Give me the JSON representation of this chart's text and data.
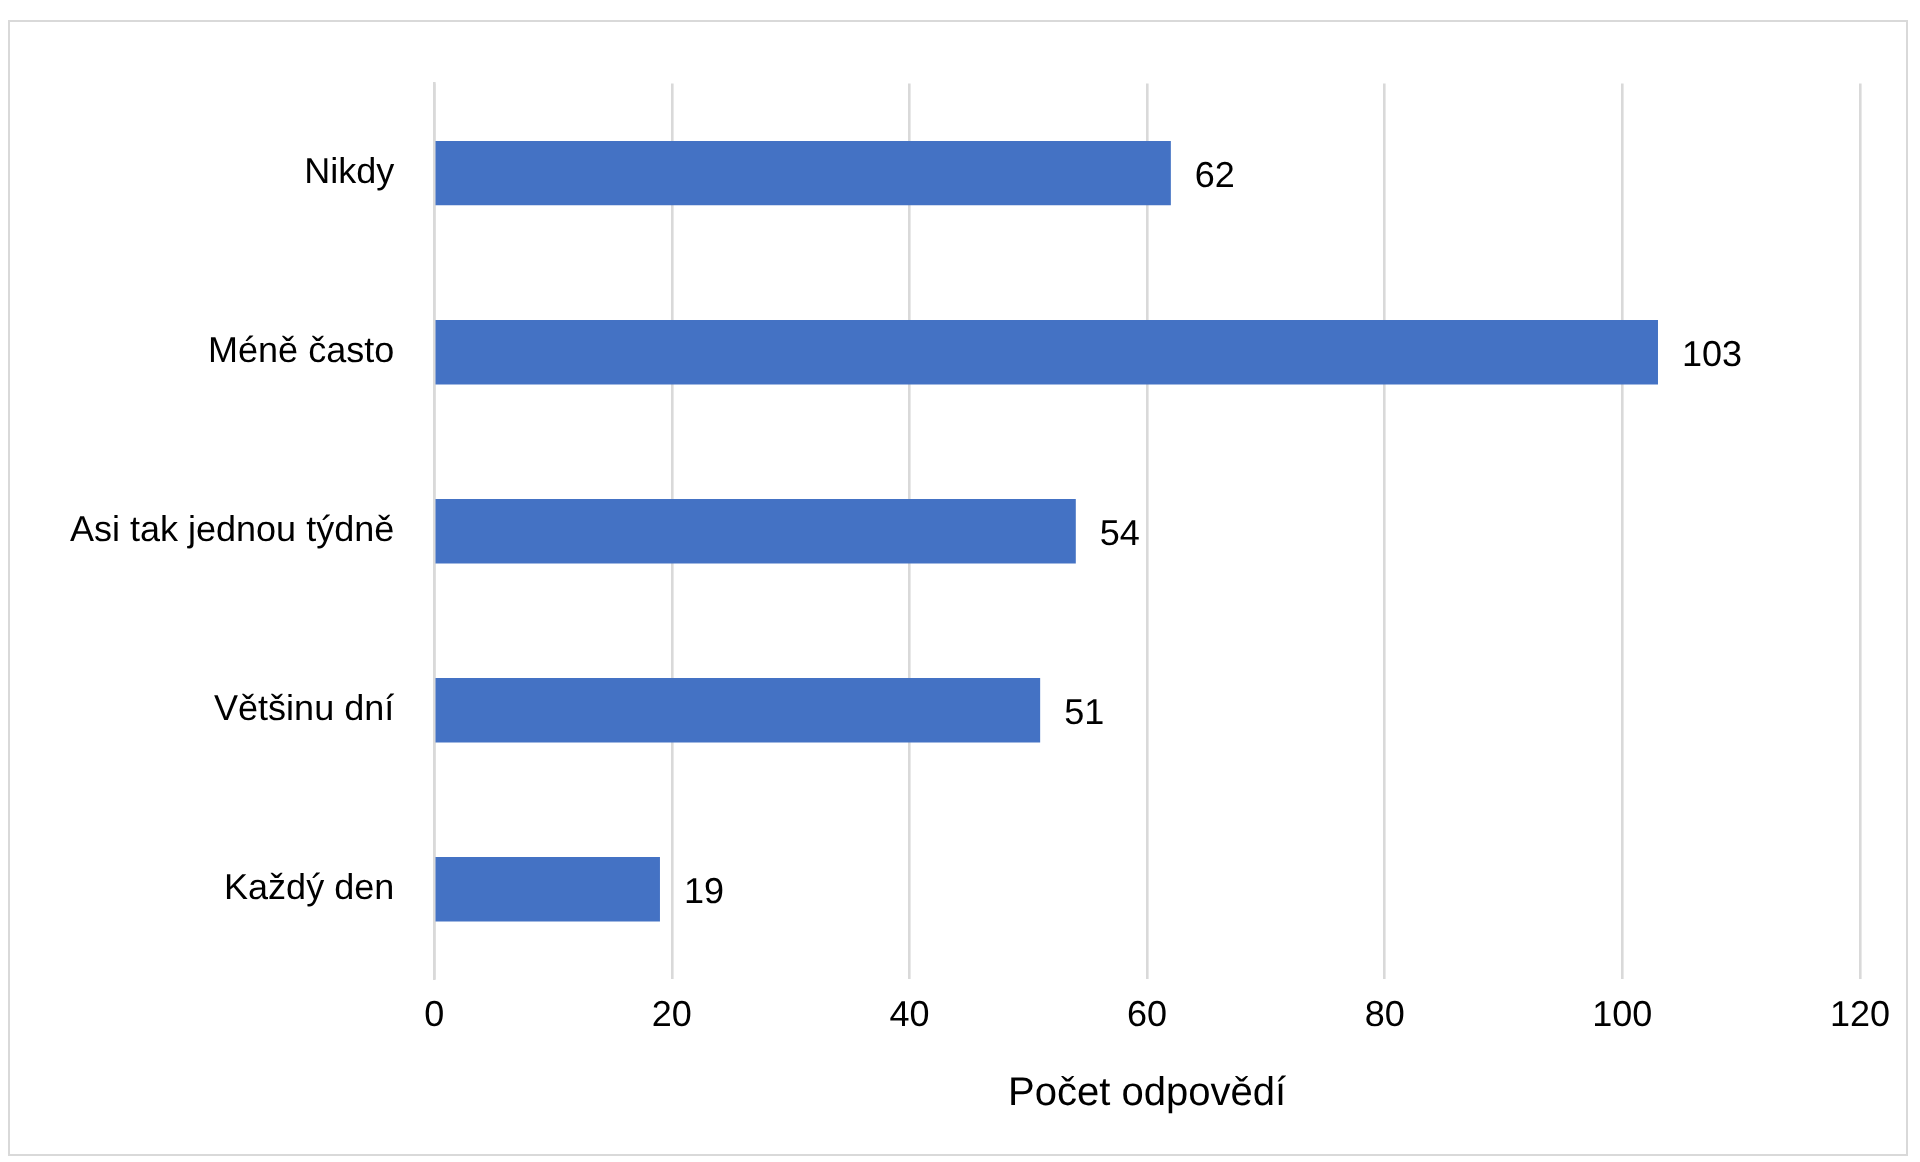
{
  "chart_data": {
    "type": "bar",
    "orientation": "horizontal",
    "xlabel": "Počet odpovědí",
    "categories": [
      "Nikdy",
      "Méně často",
      "Asi tak jednou týdně",
      "Většinu dní",
      "Každý den"
    ],
    "values": [
      62,
      103,
      54,
      51,
      19
    ],
    "color": "#4472c4",
    "xlim": [
      0,
      120
    ],
    "xticks": [
      0,
      20,
      40,
      60,
      80,
      100,
      120
    ],
    "grid": "x",
    "data_labels": true
  }
}
